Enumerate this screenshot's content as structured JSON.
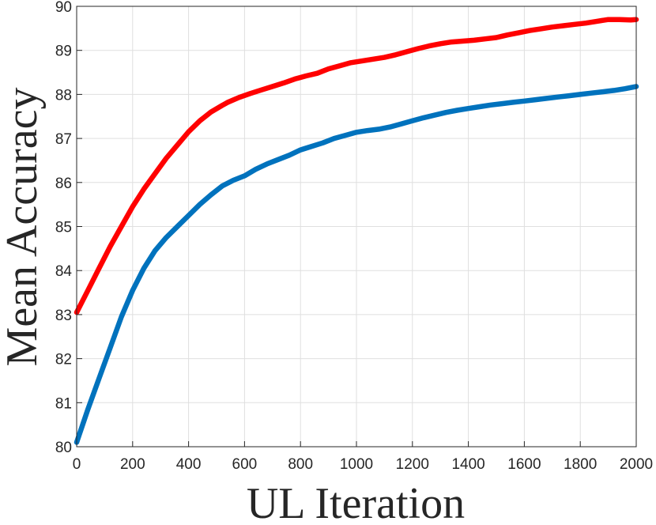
{
  "chart_data": {
    "type": "line",
    "title": "",
    "xlabel": "UL Iteration",
    "ylabel": "Mean Accuracy",
    "xlim": [
      0,
      2000
    ],
    "ylim": [
      80,
      90
    ],
    "xticks": [
      0,
      200,
      400,
      600,
      800,
      1000,
      1200,
      1400,
      1600,
      1800,
      2000
    ],
    "yticks": [
      80,
      81,
      82,
      83,
      84,
      85,
      86,
      87,
      88,
      89,
      90
    ],
    "grid": true,
    "legend": "none",
    "series": [
      {
        "color": "#ff0000",
        "x": [
          0,
          40,
          80,
          120,
          160,
          200,
          240,
          280,
          320,
          360,
          400,
          440,
          480,
          520,
          540,
          580,
          620,
          660,
          700,
          740,
          780,
          820,
          860,
          900,
          940,
          980,
          1020,
          1060,
          1100,
          1140,
          1180,
          1220,
          1260,
          1300,
          1340,
          1380,
          1420,
          1460,
          1500,
          1540,
          1580,
          1620,
          1660,
          1700,
          1740,
          1780,
          1820,
          1860,
          1900,
          1940,
          1980,
          2000
        ],
        "y": [
          83.05,
          83.55,
          84.05,
          84.55,
          85.0,
          85.45,
          85.85,
          86.2,
          86.55,
          86.85,
          87.15,
          87.4,
          87.6,
          87.75,
          87.82,
          87.93,
          88.02,
          88.1,
          88.18,
          88.26,
          88.35,
          88.42,
          88.48,
          88.58,
          88.65,
          88.72,
          88.76,
          88.8,
          88.84,
          88.9,
          88.97,
          89.04,
          89.1,
          89.15,
          89.19,
          89.21,
          89.23,
          89.26,
          89.29,
          89.35,
          89.4,
          89.45,
          89.49,
          89.53,
          89.56,
          89.59,
          89.62,
          89.66,
          89.7,
          89.7,
          89.69,
          89.7
        ]
      },
      {
        "color": "#0072bd",
        "x": [
          0,
          40,
          80,
          120,
          160,
          200,
          240,
          280,
          320,
          360,
          400,
          440,
          480,
          520,
          560,
          600,
          640,
          680,
          720,
          760,
          800,
          840,
          880,
          920,
          960,
          1000,
          1040,
          1080,
          1120,
          1160,
          1200,
          1240,
          1280,
          1320,
          1360,
          1400,
          1440,
          1480,
          1520,
          1560,
          1600,
          1640,
          1680,
          1720,
          1760,
          1800,
          1840,
          1880,
          1920,
          1960,
          2000
        ],
        "y": [
          80.1,
          80.85,
          81.55,
          82.25,
          82.95,
          83.55,
          84.05,
          84.45,
          84.75,
          85.0,
          85.25,
          85.5,
          85.72,
          85.92,
          86.05,
          86.15,
          86.3,
          86.42,
          86.52,
          86.62,
          86.74,
          86.82,
          86.9,
          87.0,
          87.07,
          87.14,
          87.18,
          87.21,
          87.26,
          87.33,
          87.4,
          87.47,
          87.53,
          87.59,
          87.64,
          87.68,
          87.72,
          87.76,
          87.79,
          87.82,
          87.85,
          87.88,
          87.91,
          87.94,
          87.97,
          88.0,
          88.03,
          88.06,
          88.09,
          88.13,
          88.18
        ]
      }
    ]
  }
}
